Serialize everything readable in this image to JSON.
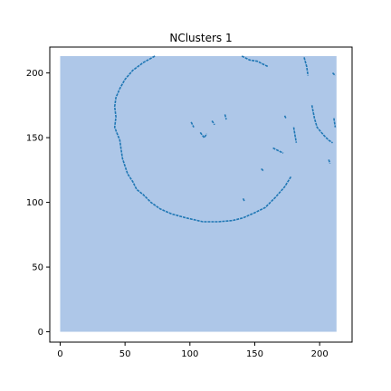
{
  "chart_data": {
    "type": "heatmap",
    "title": "NClusters 1",
    "xlabel": "",
    "ylabel": "",
    "xlim": [
      -8,
      225
    ],
    "ylim": [
      -8,
      220
    ],
    "extent": [
      0,
      213,
      0,
      213
    ],
    "x_ticks": [
      0,
      50,
      100,
      150,
      200
    ],
    "y_ticks": [
      0,
      50,
      100,
      150,
      200
    ],
    "background_color": "#aec7e8",
    "edge_color": "#1f77b4",
    "grid": false,
    "edge_features": [
      {
        "name": "outer-arc",
        "points": [
          [
            73,
            213
          ],
          [
            64,
            208
          ],
          [
            56,
            202
          ],
          [
            50,
            195
          ],
          [
            46,
            188
          ],
          [
            43,
            181
          ],
          [
            42,
            174
          ],
          [
            43,
            166
          ],
          [
            42,
            158
          ],
          [
            44,
            153
          ],
          [
            46,
            148
          ],
          [
            47,
            141
          ],
          [
            48,
            134
          ],
          [
            50,
            128
          ],
          [
            52,
            122
          ],
          [
            56,
            116
          ],
          [
            59,
            110
          ],
          [
            64,
            106
          ],
          [
            70,
            100
          ],
          [
            77,
            95
          ],
          [
            86,
            91
          ],
          [
            97,
            88
          ],
          [
            110,
            85
          ],
          [
            122,
            85
          ],
          [
            133,
            86
          ],
          [
            141,
            88
          ],
          [
            150,
            92
          ],
          [
            158,
            96
          ],
          [
            166,
            104
          ],
          [
            173,
            112
          ],
          [
            178,
            120
          ]
        ]
      },
      {
        "name": "right-segment-a",
        "points": [
          [
            188,
            212
          ],
          [
            190,
            205
          ],
          [
            191,
            198
          ]
        ]
      },
      {
        "name": "right-segment-b",
        "points": [
          [
            194,
            175
          ],
          [
            196,
            165
          ],
          [
            198,
            158
          ],
          [
            203,
            152
          ],
          [
            207,
            148
          ],
          [
            210,
            146
          ]
        ]
      },
      {
        "name": "right-tick-top",
        "points": [
          [
            210,
            200
          ],
          [
            212,
            198
          ]
        ]
      },
      {
        "name": "right-tick-mid",
        "points": [
          [
            211,
            165
          ],
          [
            212,
            158
          ]
        ]
      },
      {
        "name": "top-fragment",
        "points": [
          [
            140,
            213
          ],
          [
            146,
            210
          ],
          [
            152,
            209
          ],
          [
            156,
            207
          ],
          [
            160,
            205
          ]
        ]
      },
      {
        "name": "small-arc",
        "points": [
          [
            164,
            142
          ],
          [
            168,
            140
          ],
          [
            172,
            138
          ]
        ]
      },
      {
        "name": "mid-right-dots",
        "points": [
          [
            180,
            158
          ],
          [
            181,
            152
          ],
          [
            182,
            146
          ]
        ]
      },
      {
        "name": "dot-cluster-a",
        "points": [
          [
            101,
            162
          ],
          [
            103,
            158
          ]
        ]
      },
      {
        "name": "dot-cluster-b",
        "points": [
          [
            108,
            154
          ],
          [
            111,
            150
          ],
          [
            113,
            153
          ]
        ]
      },
      {
        "name": "dot-cluster-c",
        "points": [
          [
            117,
            163
          ],
          [
            119,
            160
          ]
        ]
      },
      {
        "name": "dot-top",
        "points": [
          [
            127,
            168
          ],
          [
            128,
            164
          ]
        ]
      },
      {
        "name": "dot-small-1",
        "points": [
          [
            155,
            126
          ],
          [
            157,
            124
          ]
        ]
      },
      {
        "name": "dot-small-2",
        "points": [
          [
            141,
            103
          ],
          [
            142,
            101
          ]
        ]
      },
      {
        "name": "dot-small-3",
        "points": [
          [
            173,
            167
          ],
          [
            174,
            165
          ]
        ]
      },
      {
        "name": "right-dot",
        "points": [
          [
            207,
            133
          ],
          [
            208,
            130
          ]
        ]
      }
    ]
  }
}
